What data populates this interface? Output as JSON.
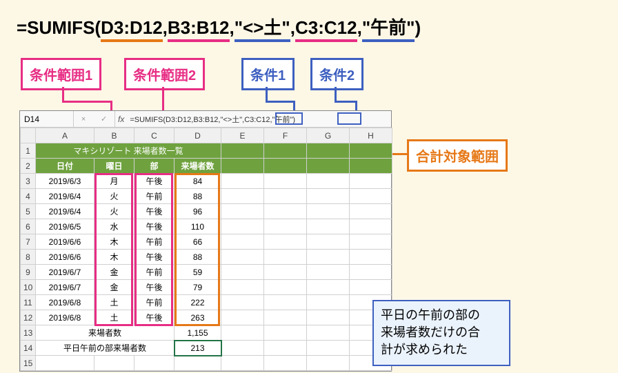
{
  "formula": {
    "prefix": "=SUMIFS(",
    "sum_range": "D3:D12",
    "sep1": ",",
    "crit_range1": "B3:B12",
    "sep2": ",",
    "crit1": "\"<>土\"",
    "sep3": ",",
    "crit_range2": "C3:C12",
    "sep4": ",",
    "crit2": "\"午前\"",
    "suffix": ")"
  },
  "labels": {
    "crit_range1": "条件範囲1",
    "crit_range2": "条件範囲2",
    "crit1": "条件1",
    "crit2": "条件2",
    "sum_range": "合計対象範囲"
  },
  "excel": {
    "cell_ref": "D14",
    "fx": "fx",
    "formula_bar": "=SUMIFS(D3:D12,B3:B12,\"<>土\",C3:C12,\"午前\")",
    "fbar_crit1": "\"<>土\"",
    "fbar_crit2": "\"午前\"",
    "columns": [
      "A",
      "B",
      "C",
      "D",
      "E",
      "F",
      "G",
      "H"
    ],
    "title": "マキシリゾート 来場者数一覧",
    "headers": {
      "date": "日付",
      "dow": "曜日",
      "part": "部",
      "count": "来場者数"
    },
    "rows": [
      {
        "n": 3,
        "date": "2019/6/3",
        "dow": "月",
        "part": "午後",
        "count": 84
      },
      {
        "n": 4,
        "date": "2019/6/4",
        "dow": "火",
        "part": "午前",
        "count": 88
      },
      {
        "n": 5,
        "date": "2019/6/4",
        "dow": "火",
        "part": "午後",
        "count": 96
      },
      {
        "n": 6,
        "date": "2019/6/5",
        "dow": "水",
        "part": "午後",
        "count": 110
      },
      {
        "n": 7,
        "date": "2019/6/6",
        "dow": "木",
        "part": "午前",
        "count": 66
      },
      {
        "n": 8,
        "date": "2019/6/6",
        "dow": "木",
        "part": "午後",
        "count": 88
      },
      {
        "n": 9,
        "date": "2019/6/7",
        "dow": "金",
        "part": "午前",
        "count": 59
      },
      {
        "n": 10,
        "date": "2019/6/7",
        "dow": "金",
        "part": "午後",
        "count": 79
      },
      {
        "n": 11,
        "date": "2019/6/8",
        "dow": "土",
        "part": "午前",
        "count": 222
      },
      {
        "n": 12,
        "date": "2019/6/8",
        "dow": "土",
        "part": "午後",
        "count": 263
      }
    ],
    "total_label": "来場者数",
    "total_value": "1,155",
    "weekday_label": "平日午前の部来場者数",
    "weekday_value": 213
  },
  "callout": {
    "l1": "平日の午前の部の",
    "l2": "来場者数だけの合",
    "l3": "計が求められた"
  },
  "colors": {
    "pink": "#e72d84",
    "blue": "#3d5fc0",
    "orange": "#e67817",
    "bg": "#fdf7e6",
    "table_green": "#6fa23f"
  }
}
